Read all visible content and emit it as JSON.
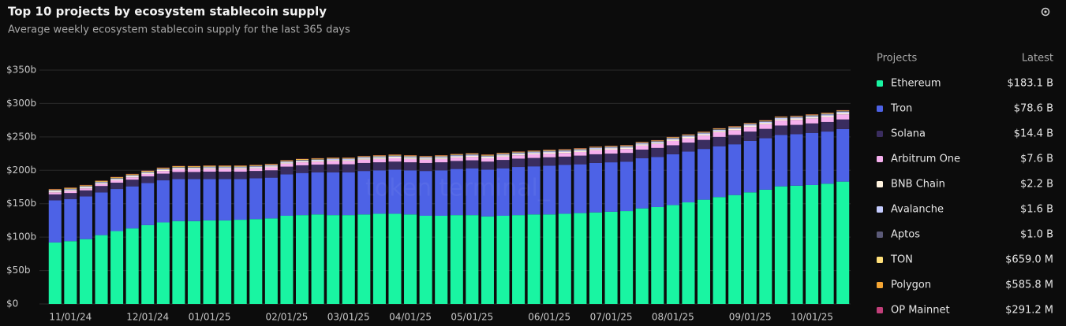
{
  "chart_data": {
    "type": "stacked_bar",
    "title": "Top 10 projects by ecosystem stablecoin supply",
    "subtitle": "Average weekly ecosystem stablecoin supply for the last 365 days",
    "watermark": "token terminal_",
    "legend_title": "Projects",
    "legend_value_title": "Latest",
    "categories": [
      null,
      "11/01/24",
      null,
      null,
      null,
      null,
      "12/01/24",
      null,
      null,
      null,
      "01/01/25",
      null,
      null,
      null,
      null,
      "02/01/25",
      null,
      null,
      null,
      "03/01/25",
      null,
      null,
      null,
      "04/01/25",
      null,
      null,
      null,
      "05/01/25",
      null,
      null,
      null,
      null,
      "06/01/25",
      null,
      null,
      null,
      "07/01/25",
      null,
      null,
      null,
      "08/01/25",
      null,
      null,
      null,
      null,
      "09/01/25",
      null,
      null,
      null,
      "10/01/25",
      null,
      null
    ],
    "ylim": [
      0,
      350
    ],
    "yticks": [
      {
        "value": 0,
        "label": "$0"
      },
      {
        "value": 50,
        "label": "$50b"
      },
      {
        "value": 100,
        "label": "$100b"
      },
      {
        "value": 150,
        "label": "$150b"
      },
      {
        "value": 200,
        "label": "$200b"
      },
      {
        "value": 250,
        "label": "$250b"
      },
      {
        "value": 300,
        "label": "$300b"
      },
      {
        "value": 350,
        "label": "$350b"
      }
    ],
    "grid": true,
    "series": [
      {
        "name": "Ethereum",
        "color": "#19f5a2",
        "latest": "$183.1 B",
        "values": [
          92,
          94,
          97,
          103,
          109,
          113,
          118,
          122,
          124,
          124,
          125,
          125,
          126,
          127,
          128,
          132,
          133,
          134,
          133,
          133,
          134,
          135,
          135,
          134,
          132,
          132,
          133,
          133,
          131,
          132,
          133,
          134,
          134,
          135,
          136,
          137,
          138,
          139,
          143,
          145,
          148,
          152,
          156,
          160,
          163,
          167,
          171,
          176,
          177,
          178,
          180,
          183.1
        ]
      },
      {
        "name": "Tron",
        "color": "#4d62e6",
        "latest": "$78.6 B",
        "values": [
          63,
          63,
          64,
          64,
          63,
          63,
          63,
          63,
          63,
          63,
          62,
          62,
          61,
          61,
          61,
          62,
          63,
          63,
          64,
          64,
          65,
          65,
          66,
          66,
          67,
          68,
          69,
          70,
          70,
          71,
          72,
          72,
          73,
          73,
          73,
          74,
          74,
          74,
          75,
          75,
          76,
          76,
          76,
          76,
          76,
          77,
          77,
          77,
          77,
          78,
          78,
          78.6
        ]
      },
      {
        "name": "Solana",
        "color": "#3a2d5f",
        "latest": "$14.4 B",
        "values": [
          9,
          9,
          9,
          9.5,
          9.5,
          10,
          10,
          10,
          10.5,
          10.5,
          11,
          11,
          11,
          11,
          11,
          11.5,
          11.5,
          11.5,
          12,
          12,
          12,
          12,
          12,
          12,
          12,
          12,
          12,
          12,
          12,
          12.5,
          12.5,
          12.5,
          12.5,
          12.5,
          13,
          13,
          13,
          13,
          13,
          13.5,
          13.5,
          13.5,
          13.5,
          14,
          14,
          14,
          14,
          14,
          14,
          14.2,
          14.3,
          14.4
        ]
      },
      {
        "name": "Arbitrum One",
        "color": "#f6b0ee",
        "latest": "$7.6 B",
        "values": [
          3,
          3,
          3,
          3,
          3.5,
          3.5,
          3.5,
          4,
          4,
          4,
          4,
          4,
          4,
          4,
          4.5,
          4.5,
          4.5,
          4.5,
          5,
          5,
          5,
          5,
          5,
          5,
          5,
          5,
          5,
          5,
          5,
          5,
          5,
          5.5,
          5.5,
          5.5,
          5.5,
          6,
          6,
          6,
          6,
          6,
          6.5,
          6.5,
          6.5,
          7,
          7,
          7,
          7,
          7.5,
          7.5,
          7.5,
          7.5,
          7.6
        ]
      },
      {
        "name": "BNB Chain",
        "color": "#fff3df",
        "latest": "$2.2 B",
        "values": [
          1.5,
          1.5,
          1.5,
          1.5,
          1.5,
          1.5,
          1.5,
          1.5,
          1.5,
          1.5,
          1.5,
          1.5,
          1.5,
          1.5,
          1.5,
          1.5,
          1.5,
          1.5,
          1.5,
          1.5,
          1.8,
          1.8,
          1.8,
          1.8,
          1.8,
          1.8,
          1.8,
          1.8,
          1.8,
          1.8,
          1.8,
          1.8,
          1.8,
          1.8,
          1.8,
          1.8,
          1.8,
          1.8,
          1.8,
          1.8,
          2,
          2,
          2,
          2,
          2,
          2,
          2,
          2,
          2,
          2,
          2.1,
          2.2
        ]
      },
      {
        "name": "Avalanche",
        "color": "#c5ccff",
        "latest": "$1.6 B",
        "values": [
          1.2,
          1.2,
          1.2,
          1.2,
          1.2,
          1.2,
          1.2,
          1.2,
          1.2,
          1.2,
          1.3,
          1.3,
          1.3,
          1.3,
          1.3,
          1.3,
          1.3,
          1.3,
          1.3,
          1.3,
          1.4,
          1.4,
          1.4,
          1.4,
          1.4,
          1.4,
          1.4,
          1.4,
          1.4,
          1.4,
          1.5,
          1.5,
          1.5,
          1.5,
          1.5,
          1.5,
          1.5,
          1.5,
          1.5,
          1.5,
          1.5,
          1.5,
          1.5,
          1.5,
          1.5,
          1.6,
          1.6,
          1.6,
          1.6,
          1.6,
          1.6,
          1.6
        ]
      },
      {
        "name": "Aptos",
        "color": "#5b5a78",
        "latest": "$1.0 B",
        "values": [
          0.5,
          0.5,
          0.5,
          0.5,
          0.5,
          0.5,
          0.5,
          0.5,
          0.5,
          0.5,
          0.6,
          0.6,
          0.6,
          0.6,
          0.6,
          0.6,
          0.6,
          0.6,
          0.6,
          0.6,
          0.7,
          0.7,
          0.7,
          0.7,
          0.7,
          0.7,
          0.7,
          0.7,
          0.7,
          0.7,
          0.8,
          0.8,
          0.8,
          0.8,
          0.8,
          0.8,
          0.8,
          0.8,
          0.8,
          0.8,
          0.9,
          0.9,
          0.9,
          0.9,
          0.9,
          0.9,
          0.9,
          0.9,
          1,
          1,
          1,
          1
        ]
      },
      {
        "name": "TON",
        "color": "#ffe07a",
        "latest": "$659.0 M",
        "values": [
          0.8,
          0.8,
          0.8,
          0.8,
          0.8,
          0.8,
          0.8,
          0.8,
          0.8,
          0.8,
          0.8,
          0.8,
          0.8,
          0.8,
          0.8,
          0.8,
          0.8,
          0.8,
          0.8,
          0.8,
          0.7,
          0.7,
          0.7,
          0.7,
          0.7,
          0.7,
          0.7,
          0.7,
          0.7,
          0.7,
          0.7,
          0.7,
          0.7,
          0.7,
          0.7,
          0.7,
          0.7,
          0.7,
          0.7,
          0.7,
          0.7,
          0.7,
          0.7,
          0.7,
          0.7,
          0.7,
          0.7,
          0.7,
          0.7,
          0.7,
          0.7,
          0.659
        ]
      },
      {
        "name": "Polygon",
        "color": "#f5a533",
        "latest": "$585.8 M",
        "values": [
          0.8,
          0.8,
          0.8,
          0.8,
          0.8,
          0.8,
          0.8,
          0.8,
          0.8,
          0.8,
          0.7,
          0.7,
          0.7,
          0.7,
          0.7,
          0.7,
          0.7,
          0.7,
          0.7,
          0.7,
          0.7,
          0.7,
          0.7,
          0.7,
          0.7,
          0.7,
          0.7,
          0.7,
          0.7,
          0.7,
          0.6,
          0.6,
          0.6,
          0.6,
          0.6,
          0.6,
          0.6,
          0.6,
          0.6,
          0.6,
          0.6,
          0.6,
          0.6,
          0.6,
          0.6,
          0.6,
          0.6,
          0.6,
          0.6,
          0.6,
          0.6,
          0.5858
        ]
      },
      {
        "name": "OP Mainnet",
        "color": "#c23f7a",
        "latest": "$291.2 M",
        "values": [
          0.3,
          0.3,
          0.3,
          0.3,
          0.3,
          0.3,
          0.3,
          0.3,
          0.3,
          0.3,
          0.3,
          0.3,
          0.3,
          0.3,
          0.3,
          0.3,
          0.3,
          0.3,
          0.3,
          0.3,
          0.3,
          0.3,
          0.3,
          0.3,
          0.3,
          0.3,
          0.3,
          0.3,
          0.3,
          0.3,
          0.3,
          0.3,
          0.3,
          0.3,
          0.3,
          0.3,
          0.3,
          0.3,
          0.3,
          0.3,
          0.3,
          0.3,
          0.3,
          0.3,
          0.3,
          0.3,
          0.3,
          0.3,
          0.3,
          0.3,
          0.3,
          0.2912
        ]
      }
    ]
  }
}
